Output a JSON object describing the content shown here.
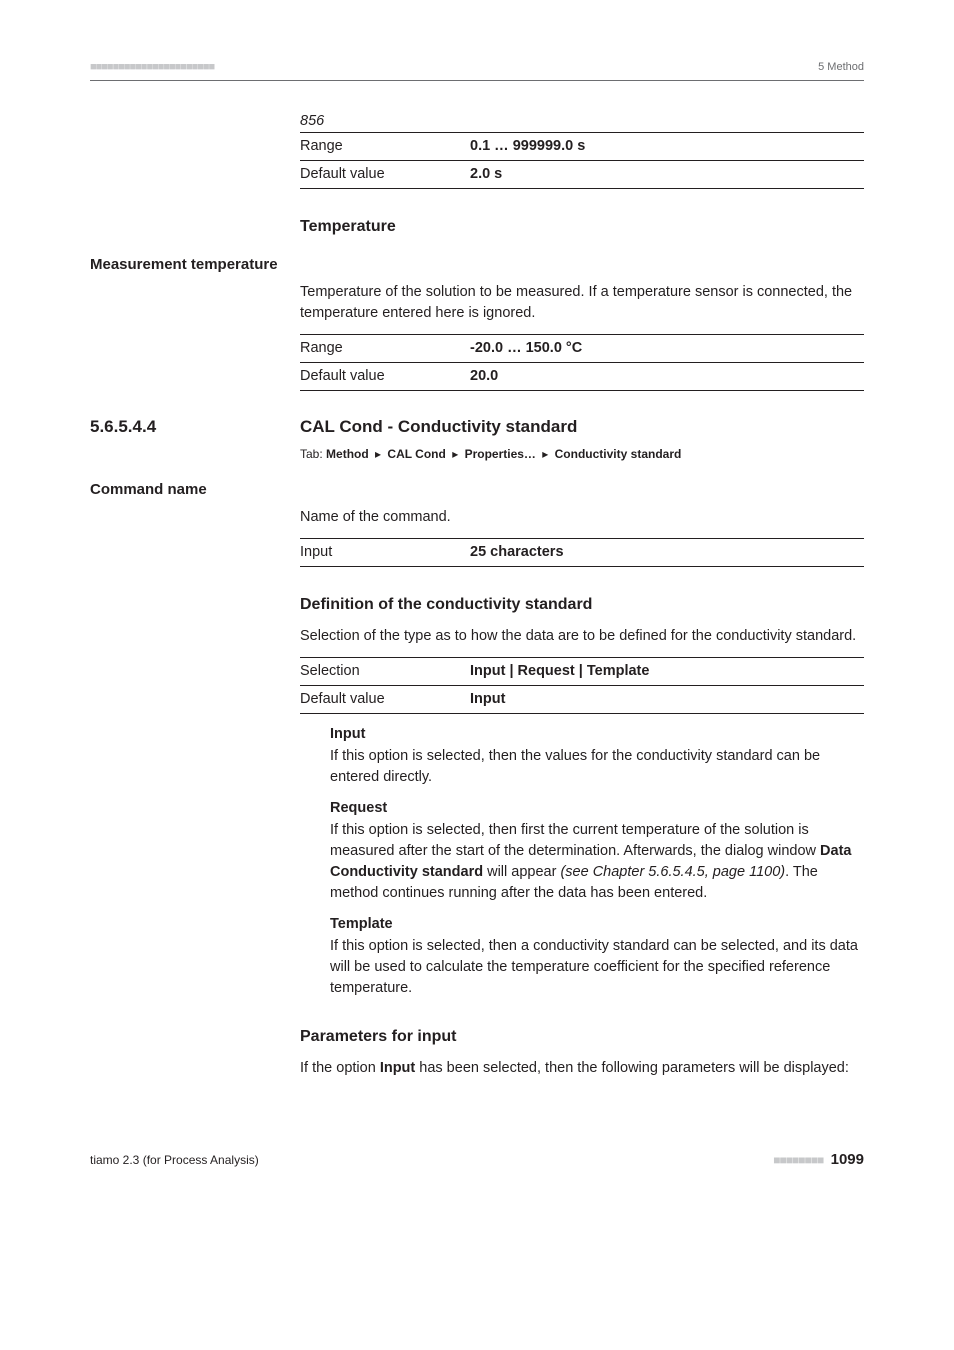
{
  "top_header": {
    "dots": "■■■■■■■■■■■■■■■■■■■■■■",
    "right": "5 Method"
  },
  "p856": {
    "caption": "856",
    "rows": [
      {
        "label": "Range",
        "value": "0.1 … 999999.0 s"
      },
      {
        "label": "Default value",
        "value": "2.0 s"
      }
    ]
  },
  "temp_heading": "Temperature",
  "measurement_temp_label": "Measurement temperature",
  "measurement_temp_body": "Temperature of the solution to be measured. If a temperature sensor is connected, the temperature entered here is ignored.",
  "measurement_temp_table": [
    {
      "label": "Range",
      "value": "-20.0 … 150.0 °C"
    },
    {
      "label": "Default value",
      "value": "20.0"
    }
  ],
  "sect": {
    "num": "5.6.5.4.4",
    "title": "CAL Cond - Conductivity standard",
    "tab_prefix": "Tab:",
    "tab_parts": [
      "Method",
      "CAL Cond",
      "Properties…",
      "Conductivity standard"
    ]
  },
  "cmd_name_label": "Command name",
  "cmd_name_body": "Name of the command.",
  "cmd_name_table": [
    {
      "label": "Input",
      "value": "25 characters"
    }
  ],
  "def_std_heading": "Definition of the conductivity standard",
  "def_std_body": "Selection of the type as to how the data are to be defined for the conductivity standard.",
  "def_std_table": [
    {
      "label": "Selection",
      "value": "Input | Request | Template"
    },
    {
      "label": "Default value",
      "value": "Input"
    }
  ],
  "options": {
    "input": {
      "term": "Input",
      "body": "If this option is selected, then the values for the conductivity standard can be entered directly."
    },
    "request": {
      "term": "Request",
      "body_pre": "If this option is selected, then first the current temperature of the solution is measured after the start of the determination. Afterwards, the dialog window ",
      "bold": "Data Conductivity standard",
      "body_mid": " will appear ",
      "ital": "(see Chapter 5.6.5.4.5, page 1100)",
      "body_post": ". The method continues running after the data has been entered."
    },
    "template": {
      "term": "Template",
      "body": "If this option is selected, then a conductivity standard can be selected, and its data will be used to calculate the temperature coefficient for the specified reference temperature."
    }
  },
  "params_heading": "Parameters for input",
  "params_body_pre": "If the option ",
  "params_body_bold": "Input",
  "params_body_post": " has been selected, then the following parameters will be displayed:",
  "footer": {
    "left": "tiamo 2.3 (for Process Analysis)",
    "dots": "■■■■■■■■",
    "page": "1099"
  }
}
